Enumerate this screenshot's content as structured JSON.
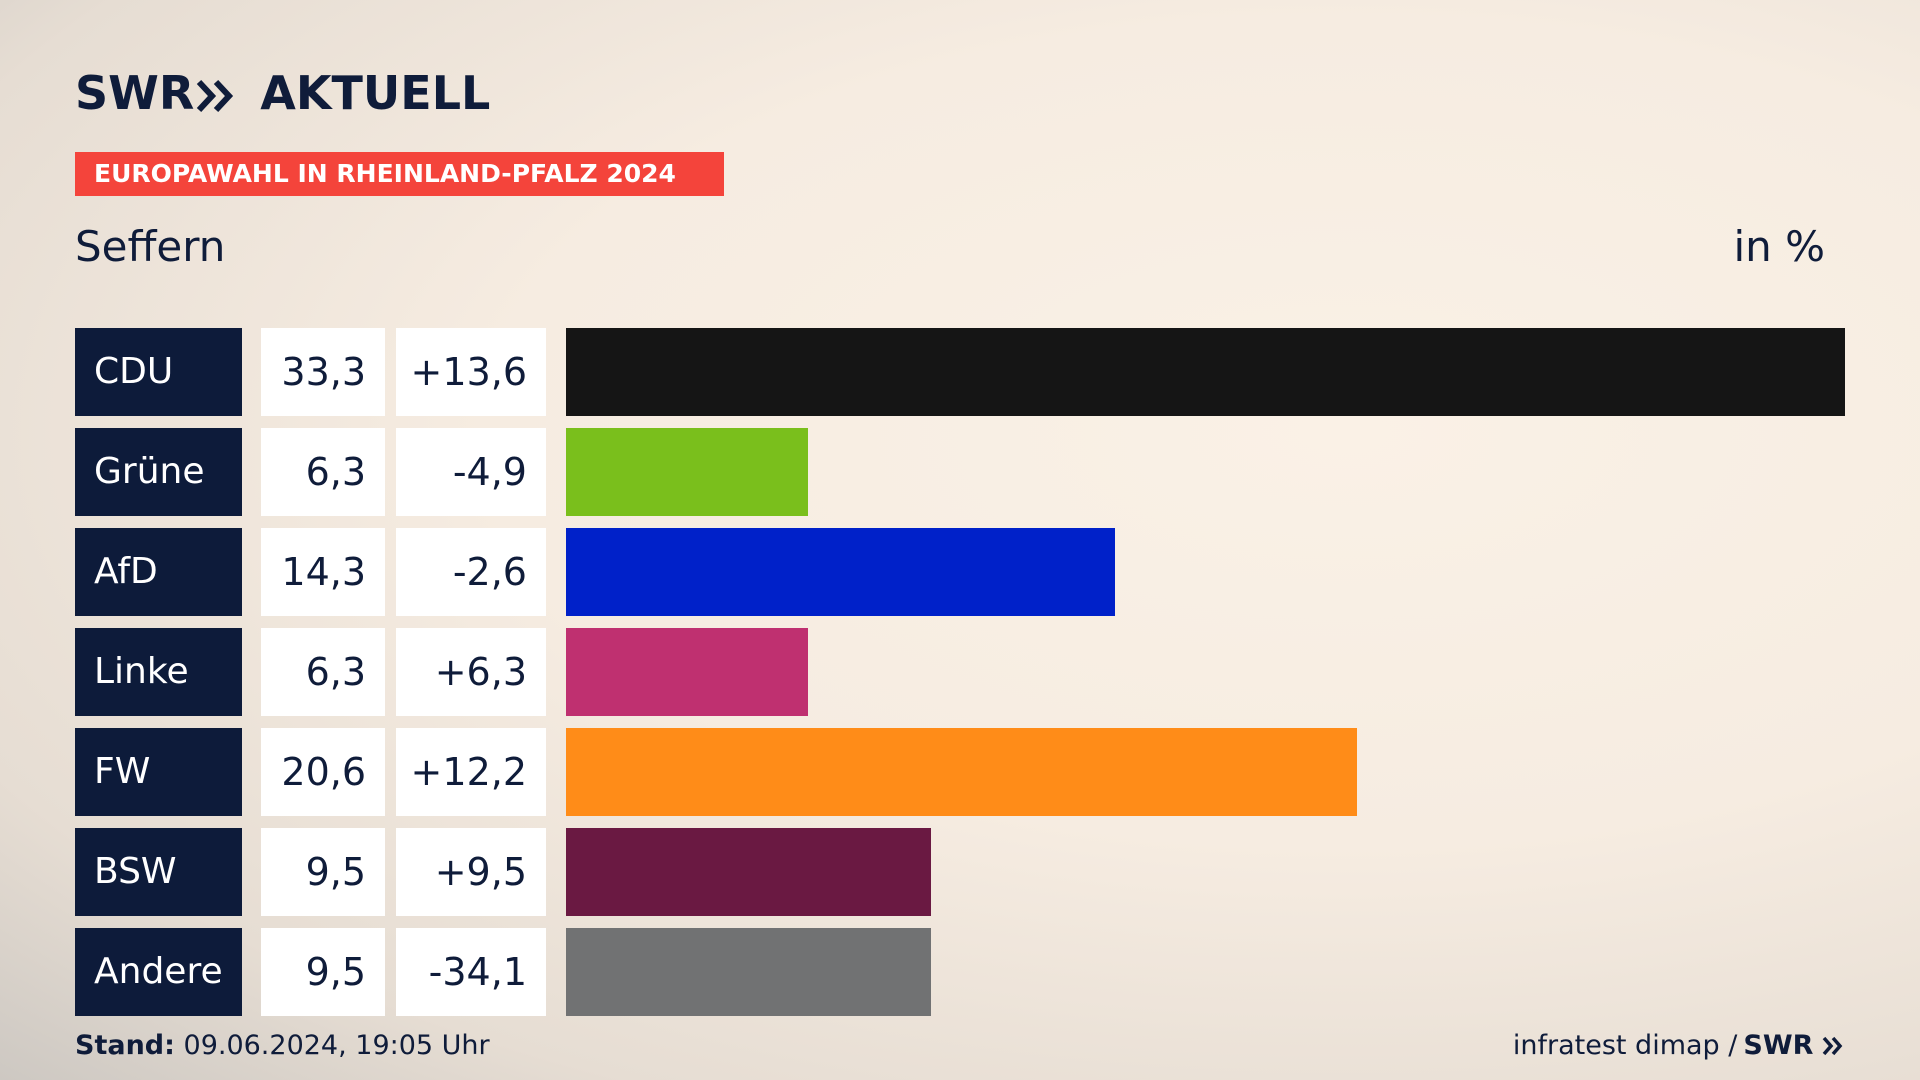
{
  "header": {
    "logo_swr": "SWR",
    "logo_chevrons": "»",
    "logo_aktuell": "AKTUELL",
    "election_tag": "EUROPAWAHL IN RHEINLAND-PFALZ 2024",
    "location": "Seffern",
    "unit": "in %"
  },
  "colors": {
    "navy": "#0d1b3a",
    "tag_red": "#f4443b",
    "cell_white": "#ffffff"
  },
  "chart_data": {
    "type": "bar",
    "orientation": "horizontal",
    "title": "EUROPAWAHL IN RHEINLAND-PFALZ 2024",
    "subtitle": "Seffern",
    "unit": "in %",
    "categories": [
      "CDU",
      "Grüne",
      "AfD",
      "Linke",
      "FW",
      "BSW",
      "Andere"
    ],
    "values": [
      33.3,
      6.3,
      14.3,
      6.3,
      20.6,
      9.5,
      9.5
    ],
    "value_labels": [
      "33,3",
      "6,3",
      "14,3",
      "6,3",
      "20,6",
      "9,5",
      "9,5"
    ],
    "diff_labels": [
      "+13,6",
      "-4,9",
      "-2,6",
      "+6,3",
      "+12,2",
      "+9,5",
      "-34,1"
    ],
    "bar_colors": [
      "#151515",
      "#7abf1c",
      "#0021c9",
      "#bf3070",
      "#ff8c18",
      "#6a1942",
      "#717273"
    ],
    "xlim": [
      0,
      33.3
    ]
  },
  "footer": {
    "stand_label": "Stand:",
    "stand_value": "09.06.2024, 19:05 Uhr",
    "source": "infratest dimap /",
    "source_logo": "SWR",
    "source_chevrons": "»"
  }
}
